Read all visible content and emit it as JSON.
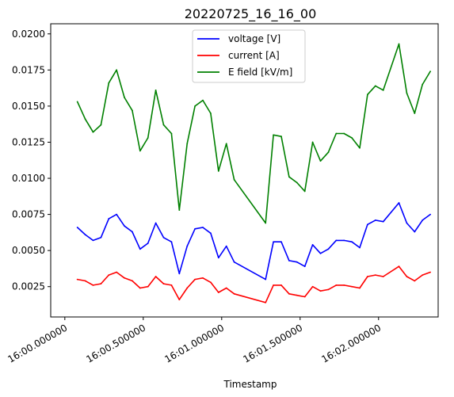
{
  "chart_data": {
    "type": "line",
    "title": "20220725_16_16_00",
    "xlabel": "Timestamp",
    "ylabel": "",
    "xlim": [
      -0.09,
      2.38
    ],
    "ylim": [
      0.0004,
      0.0207
    ],
    "x_ticks": [
      {
        "value": 0.0,
        "label": "16:00.000000"
      },
      {
        "value": 0.5,
        "label": "16:00.500000"
      },
      {
        "value": 1.0,
        "label": "16:01.000000"
      },
      {
        "value": 1.5,
        "label": "16:01.500000"
      },
      {
        "value": 2.0,
        "label": "16:02.000000"
      }
    ],
    "y_ticks": [
      {
        "value": 0.0025,
        "label": "0.0025"
      },
      {
        "value": 0.005,
        "label": "0.0050"
      },
      {
        "value": 0.0075,
        "label": "0.0075"
      },
      {
        "value": 0.01,
        "label": "0.0100"
      },
      {
        "value": 0.0125,
        "label": "0.0125"
      },
      {
        "value": 0.015,
        "label": "0.0150"
      },
      {
        "value": 0.0175,
        "label": "0.0175"
      },
      {
        "value": 0.02,
        "label": "0.0200"
      }
    ],
    "x": [
      0.08,
      0.13,
      0.18,
      0.23,
      0.28,
      0.33,
      0.38,
      0.43,
      0.48,
      0.53,
      0.58,
      0.63,
      0.68,
      0.73,
      0.78,
      0.83,
      0.88,
      0.93,
      0.98,
      1.03,
      1.08,
      1.28,
      1.33,
      1.38,
      1.43,
      1.48,
      1.53,
      1.58,
      1.63,
      1.68,
      1.73,
      1.78,
      1.83,
      1.88,
      1.93,
      1.98,
      2.03,
      2.13,
      2.18,
      2.23,
      2.28,
      2.33
    ],
    "series": [
      {
        "name": "voltage [V]",
        "color": "#0000ff",
        "values": [
          0.0066,
          0.0061,
          0.0057,
          0.0059,
          0.0072,
          0.0075,
          0.0067,
          0.0063,
          0.0051,
          0.0055,
          0.0069,
          0.0059,
          0.0056,
          0.0034,
          0.0053,
          0.0065,
          0.0066,
          0.0062,
          0.0045,
          0.0053,
          0.0042,
          0.003,
          0.0056,
          0.0056,
          0.0043,
          0.0042,
          0.0039,
          0.0054,
          0.0048,
          0.0051,
          0.0057,
          0.0057,
          0.0056,
          0.0052,
          0.0068,
          0.0071,
          0.007,
          0.0083,
          0.0069,
          0.0063,
          0.0071,
          0.0075
        ]
      },
      {
        "name": "current [A]",
        "color": "#ff0000",
        "values": [
          0.003,
          0.0029,
          0.0026,
          0.0027,
          0.0033,
          0.0035,
          0.0031,
          0.0029,
          0.0024,
          0.0025,
          0.0032,
          0.0027,
          0.0026,
          0.0016,
          0.0024,
          0.003,
          0.0031,
          0.0028,
          0.0021,
          0.0024,
          0.002,
          0.0014,
          0.0026,
          0.0026,
          0.002,
          0.0019,
          0.0018,
          0.0025,
          0.0022,
          0.0023,
          0.0026,
          0.0026,
          0.0025,
          0.0024,
          0.0032,
          0.0033,
          0.0032,
          0.0039,
          0.0032,
          0.0029,
          0.0033,
          0.0035
        ]
      },
      {
        "name": "E field [kV/m]",
        "color": "#008000",
        "values": [
          0.0153,
          0.0141,
          0.0132,
          0.0137,
          0.0166,
          0.0175,
          0.0156,
          0.0147,
          0.0119,
          0.0128,
          0.0161,
          0.0137,
          0.0131,
          0.0078,
          0.0124,
          0.015,
          0.0154,
          0.0145,
          0.0105,
          0.0124,
          0.0099,
          0.0069,
          0.013,
          0.0129,
          0.0101,
          0.0097,
          0.0091,
          0.0125,
          0.0112,
          0.0118,
          0.0131,
          0.0131,
          0.0128,
          0.0121,
          0.0158,
          0.0164,
          0.0161,
          0.0193,
          0.0159,
          0.0145,
          0.0165,
          0.0174
        ]
      }
    ],
    "legend": {
      "position": "top-center",
      "entries": [
        "voltage [V]",
        "current [A]",
        "E field [kV/m]"
      ]
    },
    "grid": false
  }
}
